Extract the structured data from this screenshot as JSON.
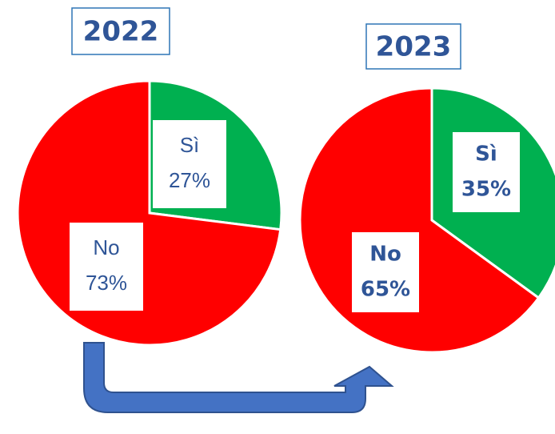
{
  "chart_data": [
    {
      "type": "pie",
      "title": "2022",
      "categories": [
        "Sì",
        "No"
      ],
      "values": [
        27,
        73
      ],
      "value_labels": [
        "27%",
        "73%"
      ],
      "colors": [
        "#00b050",
        "#ff0000"
      ]
    },
    {
      "type": "pie",
      "title": "2023",
      "categories": [
        "Sì",
        "No"
      ],
      "values": [
        35,
        65
      ],
      "value_labels": [
        "35%",
        "65%"
      ],
      "colors": [
        "#00b050",
        "#ff0000"
      ]
    }
  ]
}
